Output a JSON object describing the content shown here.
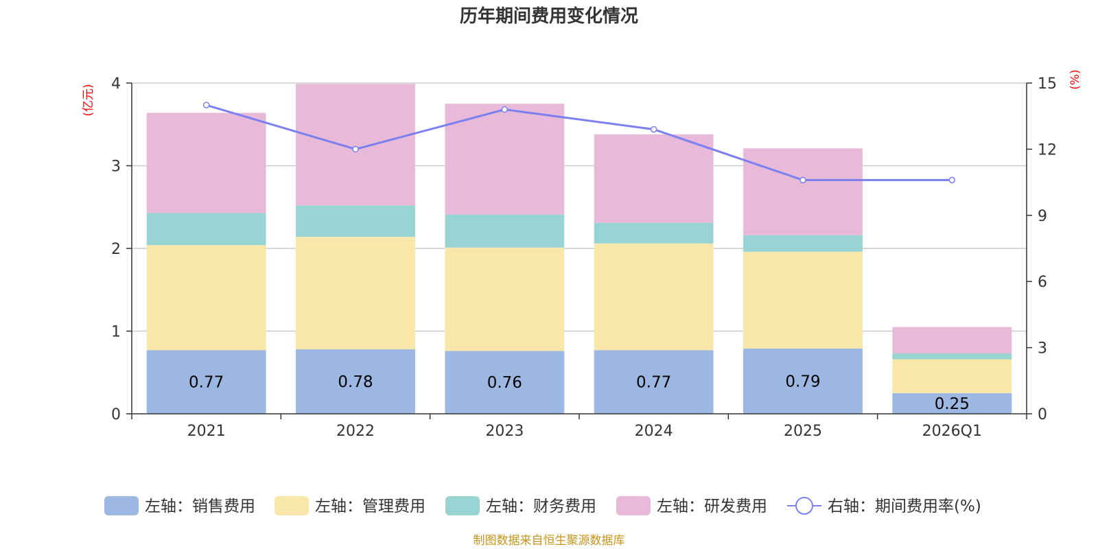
{
  "chart_data": {
    "type": "bar",
    "stacked": true,
    "title": "历年期间费用变化情况",
    "categories": [
      "2021",
      "2022",
      "2023",
      "2024",
      "2025",
      "2026Q1"
    ],
    "left_axis": {
      "unit": "(亿元)",
      "min": 0,
      "max": 4,
      "ticks": [
        "0",
        "1",
        "2",
        "3",
        "4"
      ]
    },
    "right_axis": {
      "unit": "(%)",
      "min": 0,
      "max": 15,
      "ticks": [
        "0",
        "3",
        "6",
        "9",
        "12",
        "15"
      ]
    },
    "series": [
      {
        "name": "左轴：销售费用",
        "axis": "left",
        "color": "#9cb8e2",
        "values": [
          0.77,
          0.78,
          0.76,
          0.77,
          0.79,
          0.25
        ],
        "labels": [
          "0.77",
          "0.78",
          "0.76",
          "0.77",
          "0.79",
          "0.25"
        ]
      },
      {
        "name": "左轴：管理费用",
        "axis": "left",
        "color": "#f8e7a8",
        "values": [
          1.27,
          1.36,
          1.25,
          1.29,
          1.17,
          0.41
        ]
      },
      {
        "name": "左轴：财务费用",
        "axis": "left",
        "color": "#98d4d3",
        "values": [
          0.39,
          0.38,
          0.4,
          0.25,
          0.2,
          0.07
        ]
      },
      {
        "name": "左轴：研发费用",
        "axis": "left",
        "color": "#e8b9d9",
        "values": [
          1.21,
          1.47,
          1.34,
          1.07,
          1.05,
          0.32
        ]
      }
    ],
    "line": {
      "name": "右轴：期间费用率(%)",
      "axis": "right",
      "color": "#7b7ff0",
      "values": [
        14.0,
        12.0,
        13.8,
        12.9,
        10.6,
        10.6
      ]
    },
    "source": "制图数据来自恒生聚源数据库",
    "grid": true,
    "legend": "bottom"
  }
}
